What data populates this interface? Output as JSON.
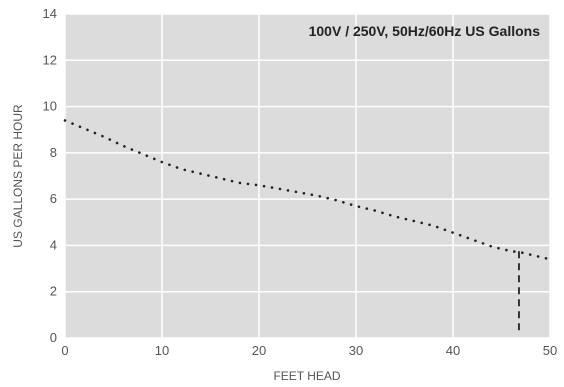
{
  "chart_data": {
    "type": "line",
    "title": "100V / 250V, 50Hz/60Hz US Gallons",
    "xlabel": "FEET HEAD",
    "ylabel": "US GALLONS PER HOUR",
    "xlim": [
      0,
      50
    ],
    "ylim": [
      0,
      14
    ],
    "x_ticks": [
      0,
      10,
      20,
      30,
      40,
      50
    ],
    "y_ticks": [
      0,
      2,
      4,
      6,
      8,
      10,
      12,
      14
    ],
    "grid": true,
    "colors": {
      "plot_background": "#dcdcdc",
      "grid": "#ffffff",
      "line": "#222222"
    },
    "series": [
      {
        "style": "dotted",
        "x": [
          0,
          2,
          4,
          6,
          8,
          10,
          12,
          14,
          16,
          18,
          20,
          22,
          24,
          26,
          28,
          30,
          32,
          34,
          36,
          38,
          40,
          42,
          44,
          46,
          47,
          48,
          50
        ],
        "y": [
          9.4,
          9.05,
          8.7,
          8.3,
          7.95,
          7.6,
          7.3,
          7.1,
          6.9,
          6.7,
          6.6,
          6.45,
          6.3,
          6.15,
          5.95,
          5.7,
          5.5,
          5.25,
          5.05,
          4.85,
          4.55,
          4.25,
          3.95,
          3.75,
          3.7,
          3.6,
          3.4
        ]
      }
    ],
    "annotations": [
      {
        "type": "vertical-dashed-line",
        "x": 46.8,
        "y_from": 0.2,
        "y_to": 3.75
      }
    ]
  }
}
